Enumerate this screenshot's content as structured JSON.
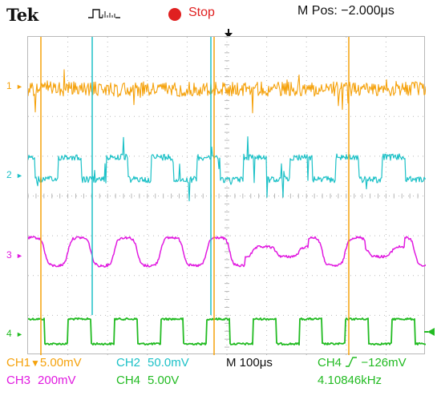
{
  "header": {
    "brand": "Tek",
    "acquisition_state": "Stop",
    "horizontal_position": "M Pos: −2.000μs"
  },
  "channel_markers": {
    "ch1": "1",
    "ch2": "2",
    "ch3": "3",
    "ch4": "4"
  },
  "readouts": {
    "ch1_label": "CH1",
    "ch1_scale": "5.00mV",
    "ch2_label": "CH2",
    "ch2_scale": "50.0mV",
    "timebase": "M 100μs",
    "trigger_source": "CH4",
    "trigger_level": "−126mV",
    "ch3_label": "CH3",
    "ch3_scale": "200mV",
    "ch4_label": "CH4",
    "ch4_scale": "5.00V",
    "frequency": "4.10846kHz"
  },
  "colors": {
    "ch1": "#f5a20c",
    "ch2": "#1dc1c7",
    "ch3": "#e11ae0",
    "ch4": "#22bb22",
    "stop": "#e02020",
    "grid": "#b8b8b8"
  }
}
